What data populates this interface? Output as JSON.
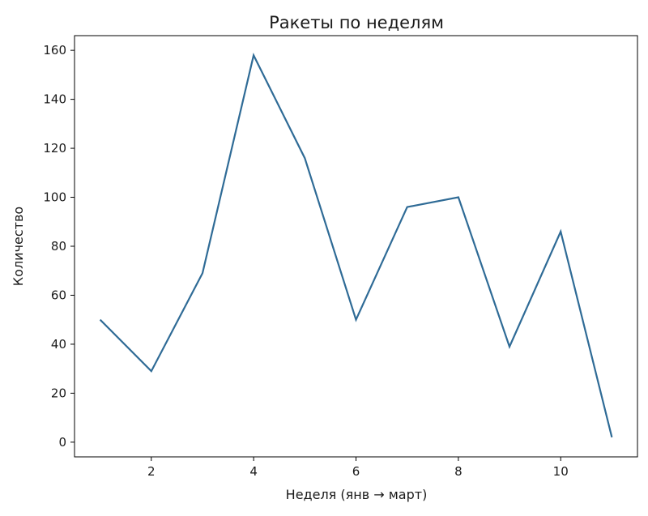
{
  "chart_data": {
    "type": "line",
    "title": "Ракеты по неделям",
    "xlabel": "Неделя (янв → март)",
    "ylabel": "Количество",
    "x": [
      1,
      2,
      3,
      4,
      5,
      6,
      7,
      8,
      9,
      10,
      11
    ],
    "series": [
      {
        "values": [
          50,
          29,
          69,
          158,
          116,
          50,
          96,
          100,
          39,
          86,
          2
        ],
        "color": "#2f6b96"
      }
    ],
    "xlim": [
      0.5,
      11.5
    ],
    "ylim": [
      -6,
      166
    ],
    "xticks": [
      2,
      4,
      6,
      8,
      10
    ],
    "yticks": [
      0,
      20,
      40,
      60,
      80,
      100,
      120,
      140,
      160
    ],
    "grid": false,
    "legend": "none"
  }
}
